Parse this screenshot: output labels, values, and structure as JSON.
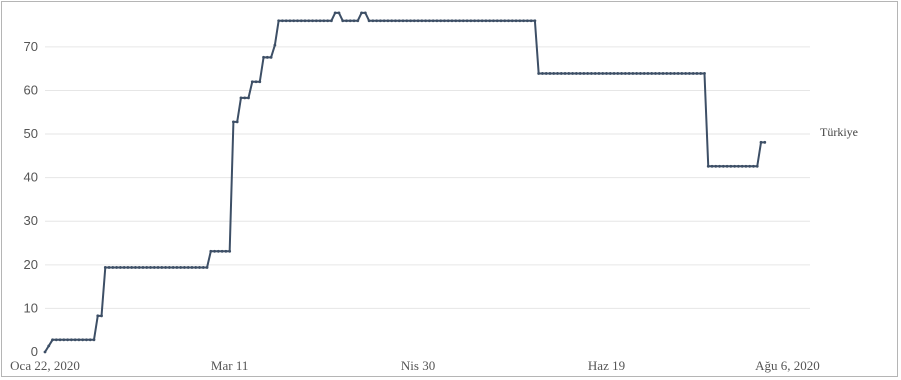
{
  "chart_data": {
    "type": "line",
    "x_tick_labels": [
      "Oca 22, 2020",
      "Mar 11",
      "Nis 30",
      "Haz 19",
      "Ağu 6, 2020"
    ],
    "x_tick_dates": [
      "2020-01-22",
      "2020-03-11",
      "2020-04-30",
      "2020-06-19",
      "2020-08-06"
    ],
    "xlim": [
      "2020-01-22",
      "2020-08-12"
    ],
    "ylim": [
      0,
      78
    ],
    "yticks": [
      0,
      10,
      20,
      30,
      40,
      50,
      60,
      70
    ],
    "grid": true,
    "legend": "none",
    "colors": {
      "series": "#3d4f66",
      "grid": "#e6e6e6"
    },
    "series": [
      {
        "name": "Türkiye",
        "points": [
          [
            "2020-01-22",
            0
          ],
          [
            "2020-01-24",
            2.8
          ],
          [
            "2020-02-04",
            2.8
          ],
          [
            "2020-02-05",
            8.3
          ],
          [
            "2020-02-06",
            8.3
          ],
          [
            "2020-02-07",
            19.4
          ],
          [
            "2020-03-05",
            19.4
          ],
          [
            "2020-03-06",
            23.1
          ],
          [
            "2020-03-11",
            23.1
          ],
          [
            "2020-03-12",
            52.8
          ],
          [
            "2020-03-13",
            52.8
          ],
          [
            "2020-03-14",
            58.3
          ],
          [
            "2020-03-16",
            58.3
          ],
          [
            "2020-03-17",
            62
          ],
          [
            "2020-03-19",
            62
          ],
          [
            "2020-03-20",
            67.6
          ],
          [
            "2020-03-22",
            67.6
          ],
          [
            "2020-03-23",
            70.4
          ],
          [
            "2020-03-24",
            76
          ],
          [
            "2020-04-07",
            76
          ],
          [
            "2020-04-08",
            77.8
          ],
          [
            "2020-04-09",
            77.8
          ],
          [
            "2020-04-10",
            76
          ],
          [
            "2020-04-14",
            76
          ],
          [
            "2020-04-15",
            77.8
          ],
          [
            "2020-04-16",
            77.8
          ],
          [
            "2020-04-17",
            76
          ],
          [
            "2020-05-31",
            76
          ],
          [
            "2020-06-01",
            63.9
          ],
          [
            "2020-07-15",
            63.9
          ],
          [
            "2020-07-16",
            42.6
          ],
          [
            "2020-07-29",
            42.6
          ],
          [
            "2020-07-30",
            48.1
          ],
          [
            "2020-07-31",
            48.1
          ]
        ]
      }
    ]
  }
}
